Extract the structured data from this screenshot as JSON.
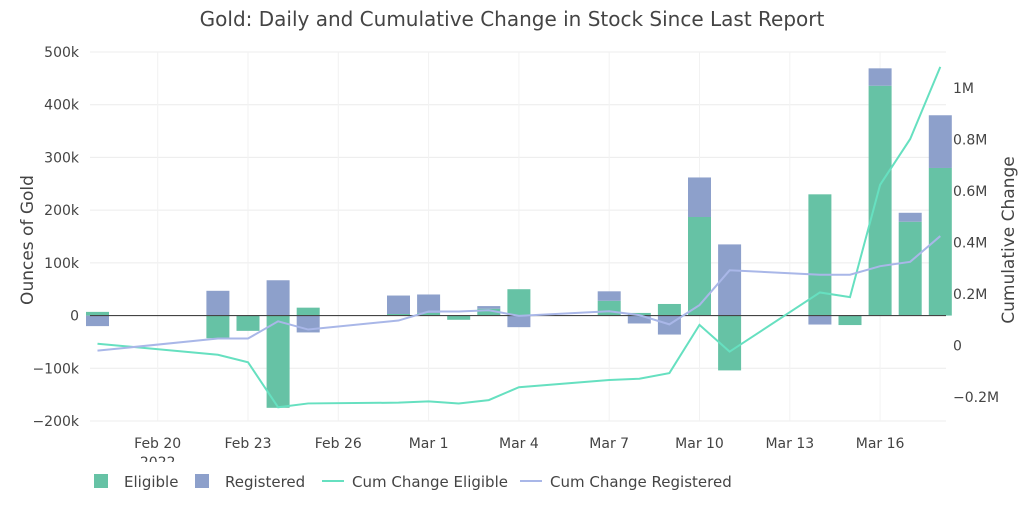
{
  "chart_data": {
    "type": "bar",
    "title": "Gold: Daily and Cumulative Change in Stock Since Last Report",
    "ylabel": "Ounces of Gold",
    "y2label": "Cumulative Change",
    "ylim": [
      -200000,
      500000
    ],
    "y2lim": [
      -0.2,
      1.0
    ],
    "yticks": [
      "500k",
      "400k",
      "300k",
      "200k",
      "100k",
      "0",
      "−100k",
      "−200k"
    ],
    "y2ticks": [
      "1M",
      "0.8M",
      "0.6M",
      "0.4M",
      "0.2M",
      "0",
      "−0.2M"
    ],
    "xticks": [
      "Feb 20",
      "Feb 23",
      "Feb 26",
      "Mar 1",
      "Mar 4",
      "Mar 7",
      "Mar 10",
      "Mar 13",
      "Mar 16"
    ],
    "xtick_sublabel": "2022",
    "dates": [
      "Feb 18",
      "Feb 22",
      "Feb 23",
      "Feb 24",
      "Feb 25",
      "Feb 28",
      "Mar 1",
      "Mar 2",
      "Mar 3",
      "Mar 4",
      "Mar 7",
      "Mar 8",
      "Mar 9",
      "Mar 10",
      "Mar 11",
      "Mar 14",
      "Mar 15",
      "Mar 16",
      "Mar 17",
      "Mar 18"
    ],
    "series": [
      {
        "name": "Eligible",
        "kind": "bar",
        "color": "#66c2a5",
        "values": [
          7000,
          -43000,
          -29000,
          -175000,
          15000,
          3000,
          5000,
          -8000,
          13000,
          50000,
          28000,
          5000,
          22000,
          187000,
          -104000,
          230000,
          -18000,
          436000,
          178000,
          280000
        ]
      },
      {
        "name": "Registered",
        "kind": "bar",
        "color": "#8da0cb",
        "values": [
          -20000,
          47000,
          0,
          67000,
          -32000,
          35000,
          35000,
          0,
          5000,
          -22000,
          18000,
          -15000,
          -36000,
          75000,
          135000,
          -17000,
          0,
          33000,
          17000,
          100000
        ]
      },
      {
        "name": "Cum Change Eligible",
        "kind": "line",
        "axis": "y2",
        "color": "#66e0c0",
        "values": [
          0.007,
          -0.036,
          -0.065,
          -0.24,
          -0.225,
          -0.222,
          -0.217,
          -0.225,
          -0.212,
          -0.162,
          -0.134,
          -0.129,
          -0.107,
          0.08,
          -0.024,
          0.206,
          0.188,
          0.624,
          0.802,
          1.082
        ]
      },
      {
        "name": "Cum Change Registered",
        "kind": "line",
        "axis": "y2",
        "color": "#a9b7e8",
        "values": [
          -0.02,
          0.027,
          0.027,
          0.094,
          0.062,
          0.097,
          0.132,
          0.132,
          0.137,
          0.115,
          0.133,
          0.118,
          0.082,
          0.157,
          0.292,
          0.275,
          0.275,
          0.308,
          0.325,
          0.425
        ]
      }
    ],
    "legend_position": "bottom",
    "grid": true
  }
}
